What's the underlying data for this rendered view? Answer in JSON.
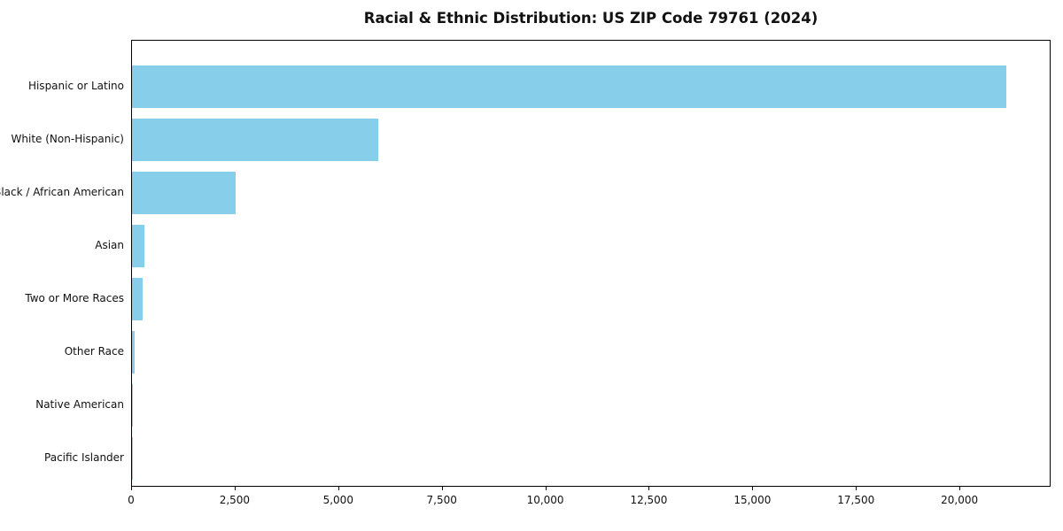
{
  "chart_data": {
    "type": "bar",
    "orientation": "horizontal",
    "title": "Racial & Ethnic Distribution: US ZIP Code 79761 (2024)",
    "xlabel": "",
    "ylabel": "",
    "categories": [
      "Hispanic or Latino",
      "White (Non-Hispanic)",
      "Black / African American",
      "Asian",
      "Two or More Races",
      "Other Race",
      "Native American",
      "Pacific Islander"
    ],
    "values": [
      21100,
      5950,
      2500,
      300,
      250,
      55,
      20,
      10
    ],
    "xlim": [
      0,
      22200
    ],
    "xticks": [
      0,
      2500,
      5000,
      7500,
      10000,
      12500,
      15000,
      17500,
      20000
    ],
    "bar_color": "#87CEEB",
    "grid": false,
    "legend": false
  }
}
